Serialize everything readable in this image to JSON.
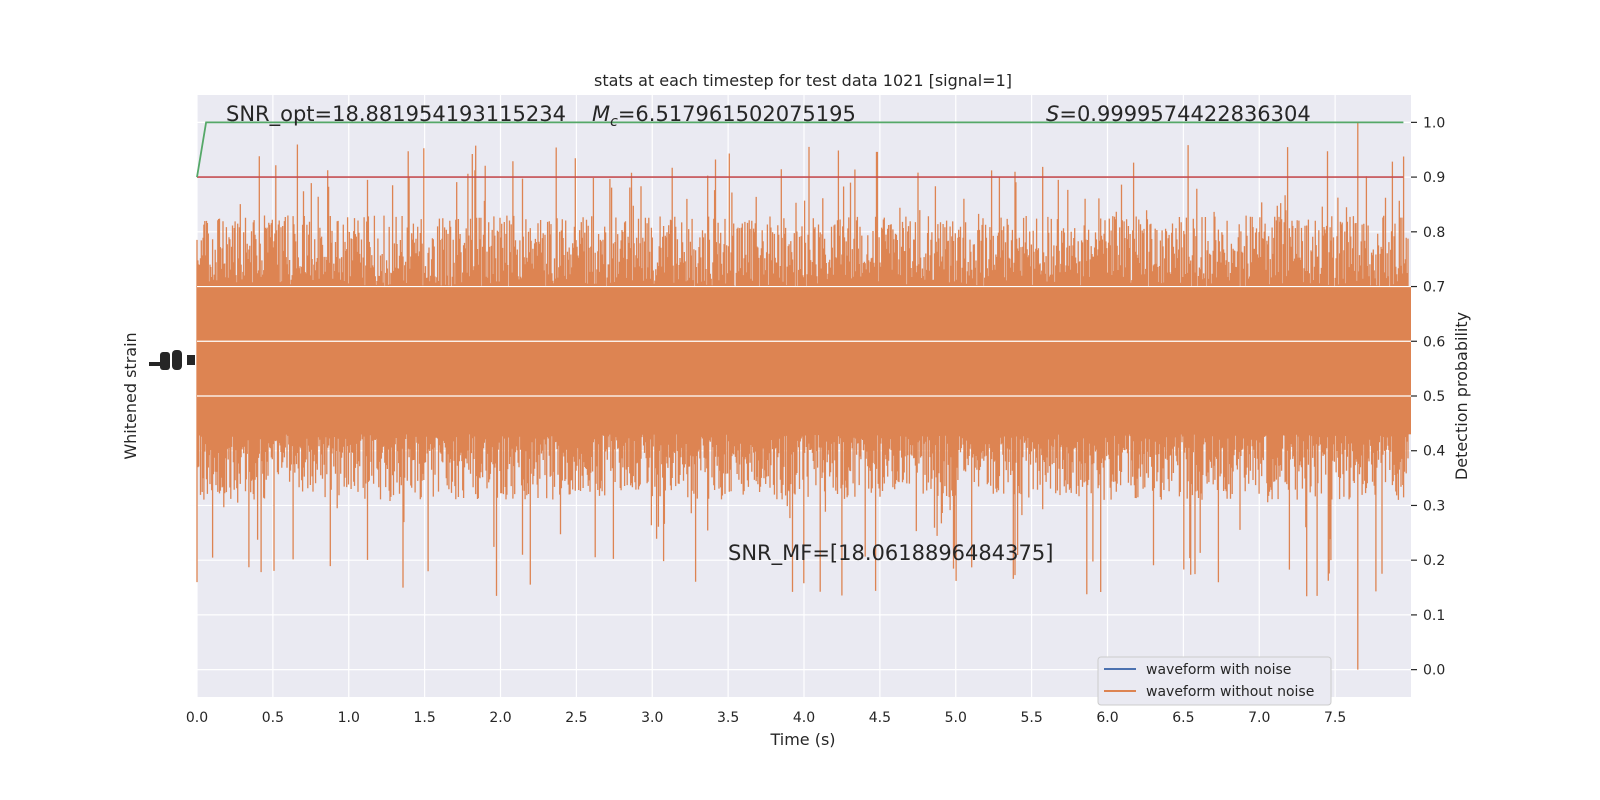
{
  "chart_data": {
    "type": "line",
    "title": "stats at each timestep for test data 1021 [signal=1]",
    "xlabel": "Time (s)",
    "ylabel_left": "Whitened strain",
    "ylabel_right": "Detection probability",
    "xlim": [
      0,
      8
    ],
    "ylim_right": [
      -0.05,
      1.05
    ],
    "x_ticks": [
      "0.0",
      "0.5",
      "1.0",
      "1.5",
      "2.0",
      "2.5",
      "3.0",
      "3.5",
      "4.0",
      "4.5",
      "5.0",
      "5.5",
      "6.0",
      "6.5",
      "7.0",
      "7.5"
    ],
    "x_tick_values": [
      0,
      0.5,
      1.0,
      1.5,
      2.0,
      2.5,
      3.0,
      3.5,
      4.0,
      4.5,
      5.0,
      5.5,
      6.0,
      6.5,
      7.0,
      7.5
    ],
    "y_right_ticks": [
      "0.0",
      "0.1",
      "0.2",
      "0.3",
      "0.4",
      "0.5",
      "0.6",
      "0.7",
      "0.8",
      "0.9",
      "1.0"
    ],
    "y_right_tick_values": [
      0,
      0.1,
      0.2,
      0.3,
      0.4,
      0.5,
      0.6,
      0.7,
      0.8,
      0.9,
      1.0
    ],
    "grid": true,
    "legend_position": "lower-right",
    "annotations": {
      "snr_opt": "SNR_opt=18.881954193115234",
      "mc_symbol": "M",
      "mc_sub": "c",
      "mc_value": "=6.517961502075195",
      "s_symbol": "S",
      "s_value": "=0.9999574422836304",
      "snr_mf": "SNR_MF=[18.0618896484375]"
    },
    "series": [
      {
        "name": "waveform with noise",
        "color": "#4c72b0"
      },
      {
        "name": "waveform without noise",
        "color": "#dd8452"
      }
    ],
    "detection_probability": {
      "color": "#55a868",
      "x": [
        0,
        0.06,
        7.95
      ],
      "y": [
        0.9,
        1.0,
        1.0
      ]
    },
    "threshold": {
      "value": 0.9,
      "color": "#c44e52"
    },
    "noise_band": {
      "center": 0.55,
      "core_low": 0.43,
      "core_high": 0.7,
      "peak_high": 1.0,
      "peak_low": 0.0
    }
  }
}
